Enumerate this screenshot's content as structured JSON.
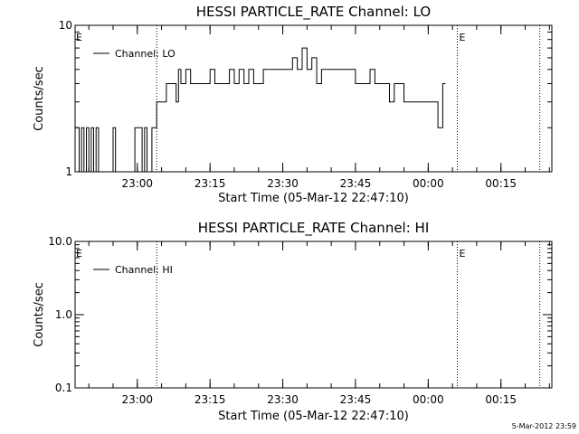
{
  "chart_data": [
    {
      "type": "line",
      "title": "HESSI PARTICLE_RATE Channel: LO",
      "ylabel": "Counts/sec",
      "xlabel": "Start Time (05-Mar-12 22:47:10)",
      "yscale": "log",
      "ylim": [
        1,
        10
      ],
      "ytick_labels": [
        "1",
        "10"
      ],
      "xlim": [
        "22:47:10",
        "00:25:30"
      ],
      "xtick_labels": [
        "23:00",
        "23:15",
        "23:30",
        "23:45",
        "00:00",
        "00:15"
      ],
      "grid": false,
      "legend_position": "top-left",
      "marker_labels": [
        "E",
        "E"
      ],
      "dotted_lines": [
        "23:04:00",
        "00:06:00",
        "00:23:00"
      ],
      "series": [
        {
          "name": "Channel: LO",
          "x": [
            "22:47:10",
            "22:48:00",
            "22:48:30",
            "22:49:00",
            "22:49:30",
            "22:50:00",
            "22:50:30",
            "22:51:00",
            "22:51:30",
            "22:52:00",
            "22:53:00",
            "22:55:00",
            "22:55:30",
            "22:56:00",
            "22:57:00",
            "22:58:00",
            "22:59:30",
            "23:01:00",
            "23:01:30",
            "23:02:00",
            "23:03:00",
            "23:04:00",
            "23:05:00",
            "23:06:00",
            "23:07:00",
            "23:08:00",
            "23:08:30",
            "23:09:00",
            "23:09:30",
            "23:10:00",
            "23:11:00",
            "23:11:30",
            "23:12:00",
            "23:13:00",
            "23:14:00",
            "23:15:00",
            "23:16:00",
            "23:17:00",
            "23:18:00",
            "23:19:00",
            "23:20:00",
            "23:21:00",
            "23:22:00",
            "23:23:00",
            "23:24:00",
            "23:25:00",
            "23:26:00",
            "23:27:00",
            "23:28:00",
            "23:29:00",
            "23:30:00",
            "23:31:00",
            "23:32:00",
            "23:33:00",
            "23:34:00",
            "23:35:00",
            "23:36:00",
            "23:37:00",
            "23:38:00",
            "23:39:00",
            "23:40:00",
            "23:41:00",
            "23:42:00",
            "23:43:00",
            "23:44:00",
            "23:45:00",
            "23:46:00",
            "23:47:00",
            "23:48:00",
            "23:49:00",
            "23:50:00",
            "23:51:00",
            "23:52:00",
            "23:53:00",
            "23:54:00",
            "23:55:00",
            "23:56:00",
            "23:57:00",
            "23:58:00",
            "23:59:00",
            "00:00:00",
            "00:01:00",
            "00:02:00",
            "00:03:00"
          ],
          "y": [
            2,
            1,
            2,
            1,
            2,
            1,
            2,
            1,
            2,
            1,
            1,
            2,
            1,
            1,
            1,
            1,
            2,
            1,
            2,
            1,
            2,
            3,
            3,
            4,
            4,
            3,
            5,
            4,
            4,
            5,
            4,
            4,
            4,
            4,
            4,
            5,
            4,
            4,
            4,
            5,
            4,
            5,
            4,
            5,
            4,
            4,
            5,
            5,
            5,
            5,
            5,
            5,
            6,
            5,
            7,
            5,
            6,
            4,
            5,
            5,
            5,
            5,
            5,
            5,
            5,
            4,
            4,
            4,
            5,
            4,
            4,
            4,
            3,
            4,
            4,
            3,
            3,
            3,
            3,
            3,
            3,
            3,
            2,
            4
          ]
        }
      ]
    },
    {
      "type": "line",
      "title": "HESSI PARTICLE_RATE Channel: HI",
      "ylabel": "Counts/sec",
      "xlabel": "Start Time (05-Mar-12 22:47:10)",
      "yscale": "log",
      "ylim": [
        0.1,
        10
      ],
      "ytick_labels": [
        "0.1",
        "1.0",
        "10.0"
      ],
      "xlim": [
        "22:47:10",
        "00:25:30"
      ],
      "xtick_labels": [
        "23:00",
        "23:15",
        "23:30",
        "23:45",
        "00:00",
        "00:15"
      ],
      "grid": false,
      "legend_position": "top-left",
      "marker_labels": [
        "E",
        "E"
      ],
      "dotted_lines": [
        "23:04:00",
        "00:06:00",
        "00:23:00"
      ],
      "series": [
        {
          "name": "Channel: HI",
          "x": [],
          "y": []
        }
      ]
    }
  ],
  "footer_stamp": "5-Mar-2012 23:59"
}
